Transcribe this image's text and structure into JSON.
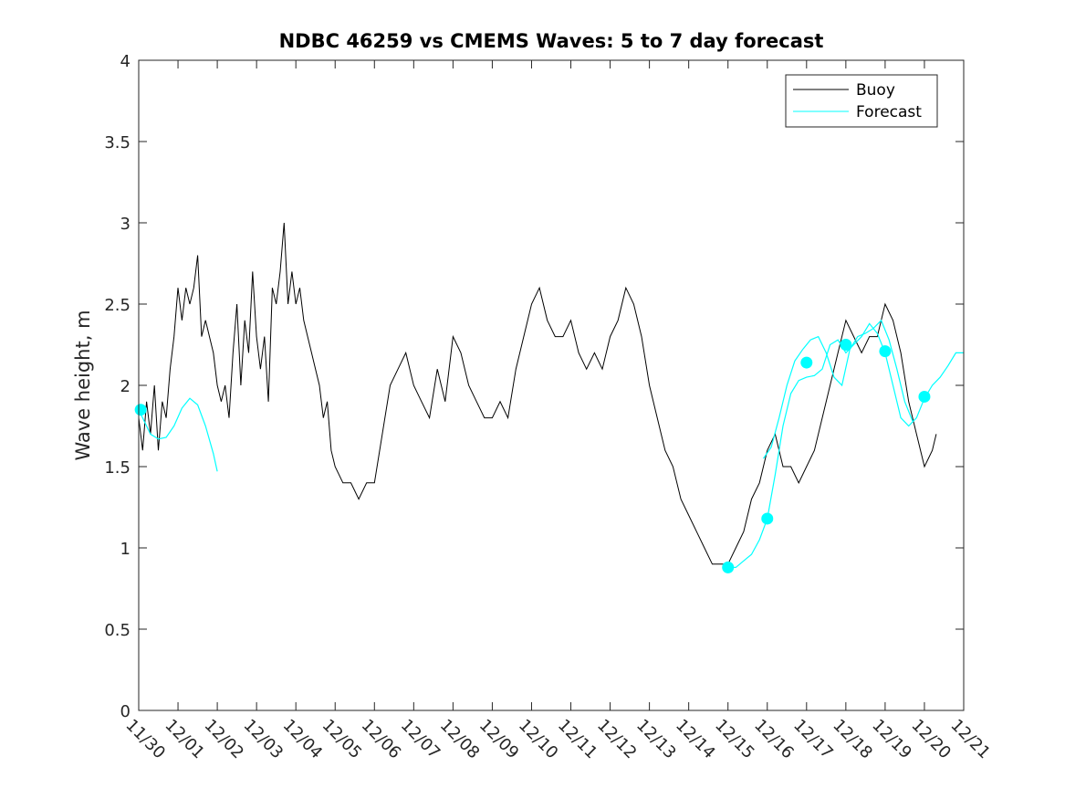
{
  "chart_data": {
    "type": "line",
    "title": "NDBC 46259 vs CMEMS Waves: 5 to 7 day forecast",
    "xlabel": "",
    "ylabel": "Wave height, m",
    "xlim": [
      0,
      21
    ],
    "ylim": [
      0,
      4
    ],
    "yticks": [
      0,
      0.5,
      1,
      1.5,
      2,
      2.5,
      3,
      3.5,
      4
    ],
    "ytick_labels": [
      "0",
      "0.5",
      "1",
      "1.5",
      "2",
      "2.5",
      "3",
      "3.5",
      "4"
    ],
    "xtick_labels": [
      "11/30",
      "12/01",
      "12/02",
      "12/03",
      "12/04",
      "12/05",
      "12/06",
      "12/07",
      "12/08",
      "12/09",
      "12/10",
      "12/11",
      "12/12",
      "12/13",
      "12/14",
      "12/15",
      "12/16",
      "12/17",
      "12/18",
      "12/19",
      "12/20",
      "12/21"
    ],
    "legend": {
      "position": "top-right",
      "entries": [
        "Buoy",
        "Forecast"
      ]
    },
    "colors": {
      "buoy": "#000000",
      "forecast": "#00ffff",
      "axes": "#262626"
    },
    "series": [
      {
        "name": "Buoy",
        "x": [
          0,
          0.1,
          0.2,
          0.3,
          0.4,
          0.5,
          0.6,
          0.7,
          0.8,
          0.9,
          1.0,
          1.1,
          1.2,
          1.3,
          1.4,
          1.5,
          1.6,
          1.7,
          1.8,
          1.9,
          2.0,
          2.1,
          2.2,
          2.3,
          2.4,
          2.5,
          2.6,
          2.7,
          2.8,
          2.9,
          3.0,
          3.1,
          3.2,
          3.3,
          3.4,
          3.5,
          3.6,
          3.7,
          3.8,
          3.9,
          4.0,
          4.1,
          4.2,
          4.3,
          4.4,
          4.5,
          4.6,
          4.7,
          4.8,
          4.9,
          5.0,
          5.2,
          5.4,
          5.6,
          5.8,
          6.0,
          6.2,
          6.4,
          6.6,
          6.8,
          7.0,
          7.2,
          7.4,
          7.6,
          7.8,
          8.0,
          8.2,
          8.4,
          8.6,
          8.8,
          9.0,
          9.2,
          9.4,
          9.6,
          9.8,
          10.0,
          10.2,
          10.4,
          10.6,
          10.8,
          11.0,
          11.2,
          11.4,
          11.6,
          11.8,
          12.0,
          12.2,
          12.4,
          12.6,
          12.8,
          13.0,
          13.2,
          13.4,
          13.6,
          13.8,
          14.0,
          14.2,
          14.4,
          14.6,
          14.8,
          15.0,
          15.2,
          15.4,
          15.6,
          15.8,
          16.0,
          16.2,
          16.4,
          16.6,
          16.8,
          17.0,
          17.2,
          17.4,
          17.6,
          17.8,
          18.0,
          18.2,
          18.4,
          18.6,
          18.8,
          19.0,
          19.2,
          19.4,
          19.6,
          19.8,
          20.0,
          20.2,
          20.3
        ],
        "values": [
          1.8,
          1.6,
          1.9,
          1.7,
          2.0,
          1.6,
          1.9,
          1.8,
          2.1,
          2.3,
          2.6,
          2.4,
          2.6,
          2.5,
          2.6,
          2.8,
          2.3,
          2.4,
          2.3,
          2.2,
          2.0,
          1.9,
          2.0,
          1.8,
          2.2,
          2.5,
          2.0,
          2.4,
          2.2,
          2.7,
          2.3,
          2.1,
          2.3,
          1.9,
          2.6,
          2.5,
          2.7,
          3.0,
          2.5,
          2.7,
          2.5,
          2.6,
          2.4,
          2.3,
          2.2,
          2.1,
          2.0,
          1.8,
          1.9,
          1.6,
          1.5,
          1.4,
          1.4,
          1.3,
          1.4,
          1.4,
          1.7,
          2.0,
          2.1,
          2.2,
          2.0,
          1.9,
          1.8,
          2.1,
          1.9,
          2.3,
          2.2,
          2.0,
          1.9,
          1.8,
          1.8,
          1.9,
          1.8,
          2.1,
          2.3,
          2.5,
          2.6,
          2.4,
          2.3,
          2.3,
          2.4,
          2.2,
          2.1,
          2.2,
          2.1,
          2.3,
          2.4,
          2.6,
          2.5,
          2.3,
          2.0,
          1.8,
          1.6,
          1.5,
          1.3,
          1.2,
          1.1,
          1.0,
          0.9,
          0.9,
          0.9,
          1.0,
          1.1,
          1.3,
          1.4,
          1.6,
          1.7,
          1.5,
          1.5,
          1.4,
          1.5,
          1.6,
          1.8,
          2.0,
          2.2,
          2.4,
          2.3,
          2.2,
          2.3,
          2.3,
          2.5,
          2.4,
          2.2,
          1.9,
          1.7,
          1.5,
          1.6,
          1.7
        ]
      },
      {
        "name": "Forecast",
        "segments": [
          {
            "x": [
              0,
              0.1,
              0.3,
              0.5,
              0.7,
              0.9,
              1.1,
              1.3,
              1.5,
              1.7,
              1.9,
              2.0
            ],
            "values": [
              1.85,
              1.8,
              1.7,
              1.67,
              1.68,
              1.75,
              1.86,
              1.92,
              1.88,
              1.75,
              1.58,
              1.47
            ]
          },
          {
            "x": [
              15.0,
              15.2,
              15.4,
              15.6,
              15.8,
              16.0,
              16.2,
              16.4,
              16.6,
              16.8,
              17.0,
              17.2,
              17.4,
              17.6,
              17.8,
              18.0,
              18.2,
              18.4,
              18.6,
              18.8,
              19.0,
              19.2,
              19.4,
              19.6,
              19.8,
              20.0,
              20.2,
              20.4,
              20.6,
              20.8,
              21.0
            ],
            "values": [
              0.88,
              0.88,
              0.92,
              0.96,
              1.05,
              1.18,
              1.45,
              1.75,
              1.95,
              2.03,
              2.05,
              2.06,
              2.1,
              2.25,
              2.28,
              2.2,
              2.25,
              2.3,
              2.38,
              2.32,
              2.2,
              2.0,
              1.8,
              1.75,
              1.8,
              1.92,
              2.0,
              2.05,
              2.12,
              2.2,
              2.2
            ]
          },
          {
            "x": [
              15.9,
              16.1,
              16.3,
              16.5,
              16.7,
              16.9,
              17.1,
              17.3,
              17.5,
              17.7,
              17.9,
              18.1,
              18.3,
              18.5,
              18.7,
              18.9,
              19.1,
              19.3,
              19.5,
              19.7
            ],
            "values": [
              1.55,
              1.62,
              1.8,
              2.0,
              2.15,
              2.22,
              2.28,
              2.3,
              2.2,
              2.05,
              2.0,
              2.22,
              2.3,
              2.32,
              2.35,
              2.4,
              2.28,
              2.1,
              1.9,
              1.78
            ]
          }
        ],
        "markers": [
          {
            "x": 0.05,
            "y": 1.85
          },
          {
            "x": 15.0,
            "y": 0.88
          },
          {
            "x": 16.0,
            "y": 1.18
          },
          {
            "x": 17.0,
            "y": 2.14
          },
          {
            "x": 18.0,
            "y": 2.25
          },
          {
            "x": 19.0,
            "y": 2.21
          },
          {
            "x": 20.0,
            "y": 1.93
          }
        ]
      }
    ]
  }
}
